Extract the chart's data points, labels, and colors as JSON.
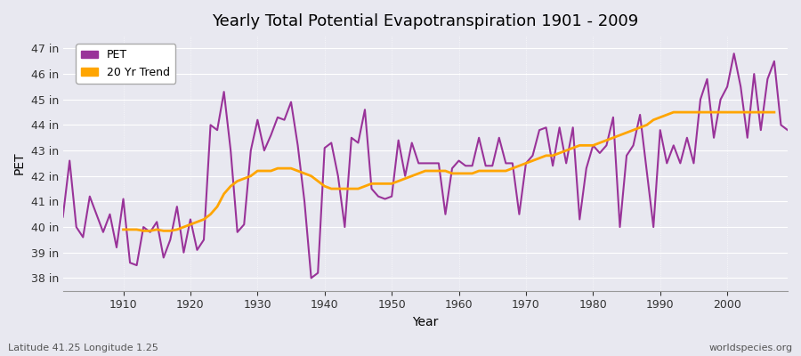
{
  "title": "Yearly Total Potential Evapotranspiration 1901 - 2009",
  "ylabel": "PET",
  "xlabel": "Year",
  "footnote_left": "Latitude 41.25 Longitude 1.25",
  "footnote_right": "worldspecies.org",
  "pet_color": "#993399",
  "trend_color": "#FFA500",
  "background_color": "#e8e8ee",
  "plot_bg_color": "#e8e8ee",
  "ylim": [
    37.5,
    47.5
  ],
  "yticks": [
    38,
    39,
    40,
    41,
    42,
    43,
    44,
    45,
    46,
    47
  ],
  "ytick_labels": [
    "38 in",
    "39 in",
    "40 in",
    "41 in",
    "42 in",
    "43 in",
    "44 in",
    "45 in",
    "46 in",
    "47 in"
  ],
  "years": [
    1901,
    1902,
    1903,
    1904,
    1905,
    1906,
    1907,
    1908,
    1909,
    1910,
    1911,
    1912,
    1913,
    1914,
    1915,
    1916,
    1917,
    1918,
    1919,
    1920,
    1921,
    1922,
    1923,
    1924,
    1925,
    1926,
    1927,
    1928,
    1929,
    1930,
    1931,
    1932,
    1933,
    1934,
    1935,
    1936,
    1937,
    1938,
    1939,
    1940,
    1941,
    1942,
    1943,
    1944,
    1945,
    1946,
    1947,
    1948,
    1949,
    1950,
    1951,
    1952,
    1953,
    1954,
    1955,
    1956,
    1957,
    1958,
    1959,
    1960,
    1961,
    1962,
    1963,
    1964,
    1965,
    1966,
    1967,
    1968,
    1969,
    1970,
    1971,
    1972,
    1973,
    1974,
    1975,
    1976,
    1977,
    1978,
    1979,
    1980,
    1981,
    1982,
    1983,
    1984,
    1985,
    1986,
    1987,
    1988,
    1989,
    1990,
    1991,
    1992,
    1993,
    1994,
    1995,
    1996,
    1997,
    1998,
    1999,
    2000,
    2001,
    2002,
    2003,
    2004,
    2005,
    2006,
    2007,
    2008,
    2009
  ],
  "pet": [
    40.4,
    42.6,
    40.0,
    39.6,
    41.2,
    40.5,
    39.8,
    40.5,
    39.2,
    41.1,
    38.6,
    38.5,
    40.0,
    39.8,
    40.2,
    38.8,
    39.5,
    40.8,
    39.0,
    40.3,
    39.1,
    39.5,
    44.0,
    43.8,
    45.3,
    43.0,
    39.8,
    40.1,
    43.0,
    44.2,
    43.0,
    43.6,
    44.3,
    44.2,
    44.9,
    43.2,
    41.0,
    38.0,
    38.2,
    43.1,
    43.3,
    42.0,
    40.0,
    43.5,
    43.3,
    44.6,
    41.5,
    41.2,
    41.1,
    41.2,
    43.4,
    42.0,
    43.3,
    42.5,
    42.5,
    42.5,
    42.5,
    40.5,
    42.3,
    42.6,
    42.4,
    42.4,
    43.5,
    42.4,
    42.4,
    43.5,
    42.5,
    42.5,
    40.5,
    42.5,
    42.8,
    43.8,
    43.9,
    42.4,
    43.9,
    42.5,
    43.9,
    40.3,
    42.3,
    43.2,
    42.9,
    43.2,
    44.3,
    40.0,
    42.8,
    43.2,
    44.4,
    42.2,
    40.0,
    43.8,
    42.5,
    43.2,
    42.5,
    43.5,
    42.5,
    45.0,
    45.8,
    43.5,
    45.0,
    45.5,
    46.8,
    45.5,
    43.5,
    46.0,
    43.8,
    45.8,
    46.5,
    44.0,
    43.8
  ],
  "trend": [
    null,
    null,
    null,
    null,
    null,
    null,
    null,
    null,
    null,
    39.9,
    39.9,
    39.9,
    39.85,
    39.85,
    39.9,
    39.85,
    39.85,
    39.9,
    40.0,
    40.1,
    40.2,
    40.3,
    40.5,
    40.8,
    41.3,
    41.6,
    41.8,
    41.9,
    42.0,
    42.2,
    42.2,
    42.2,
    42.3,
    42.3,
    42.3,
    42.2,
    42.1,
    42.0,
    41.8,
    41.6,
    41.5,
    41.5,
    41.5,
    41.5,
    41.5,
    41.6,
    41.7,
    41.7,
    41.7,
    41.7,
    41.8,
    41.9,
    42.0,
    42.1,
    42.2,
    42.2,
    42.2,
    42.2,
    42.1,
    42.1,
    42.1,
    42.1,
    42.2,
    42.2,
    42.2,
    42.2,
    42.2,
    42.3,
    42.4,
    42.5,
    42.6,
    42.7,
    42.8,
    42.8,
    42.9,
    43.0,
    43.1,
    43.2,
    43.2,
    43.2,
    43.3,
    43.4,
    43.5,
    43.6,
    43.7,
    43.8,
    43.9,
    44.0,
    44.2,
    44.3,
    44.4,
    44.5,
    44.5,
    44.5,
    44.5,
    44.5,
    44.5,
    44.5,
    44.5,
    44.5,
    44.5,
    44.5,
    44.5,
    44.5,
    44.5,
    44.5,
    44.5
  ],
  "legend_pet": "PET",
  "legend_trend": "20 Yr Trend",
  "pet_lw": 1.5,
  "trend_lw": 2.0
}
